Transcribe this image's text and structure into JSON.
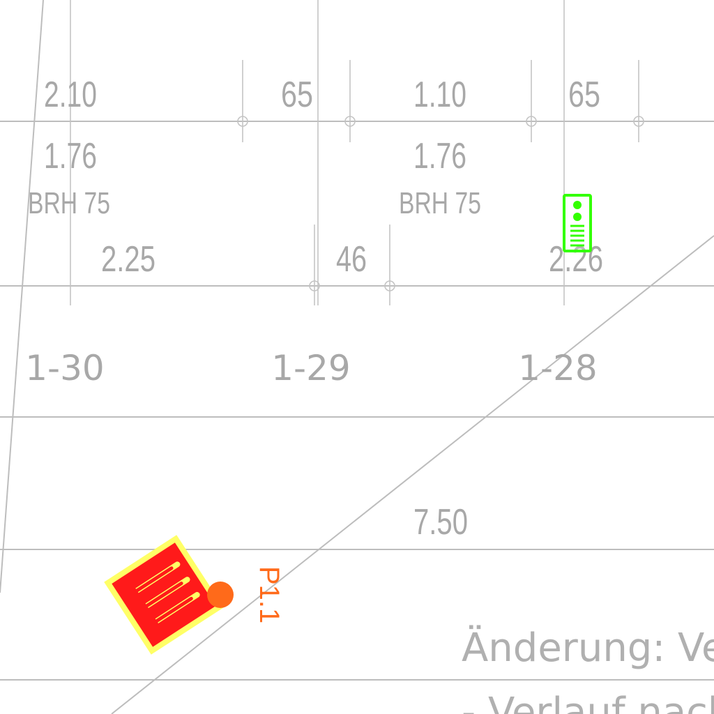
{
  "colors": {
    "line": "#bdbdbd",
    "text": "#a8a8a8",
    "marker": "#ff6a1a",
    "device_green": "#33ff00",
    "sign_red": "#ff1a1a",
    "sign_yellow": "#ffff66"
  },
  "dimensions": {
    "top": [
      "2.10",
      "65",
      "1.10",
      "65"
    ],
    "second": [
      "1.76",
      "1.76"
    ],
    "sill": [
      "BRH 75",
      "BRH 75"
    ],
    "lower": [
      "2.25",
      "46",
      "2.26"
    ],
    "span": "7.50"
  },
  "rooms": [
    "1-30",
    "1-29",
    "1-28"
  ],
  "marker_label": "P1.1",
  "note": {
    "line1": "Änderung: Ve",
    "line2": "- Verlauf nach"
  },
  "icons": {
    "green_device": "intercom-device-icon",
    "red_sign": "emergency-exit-sign-icon"
  }
}
